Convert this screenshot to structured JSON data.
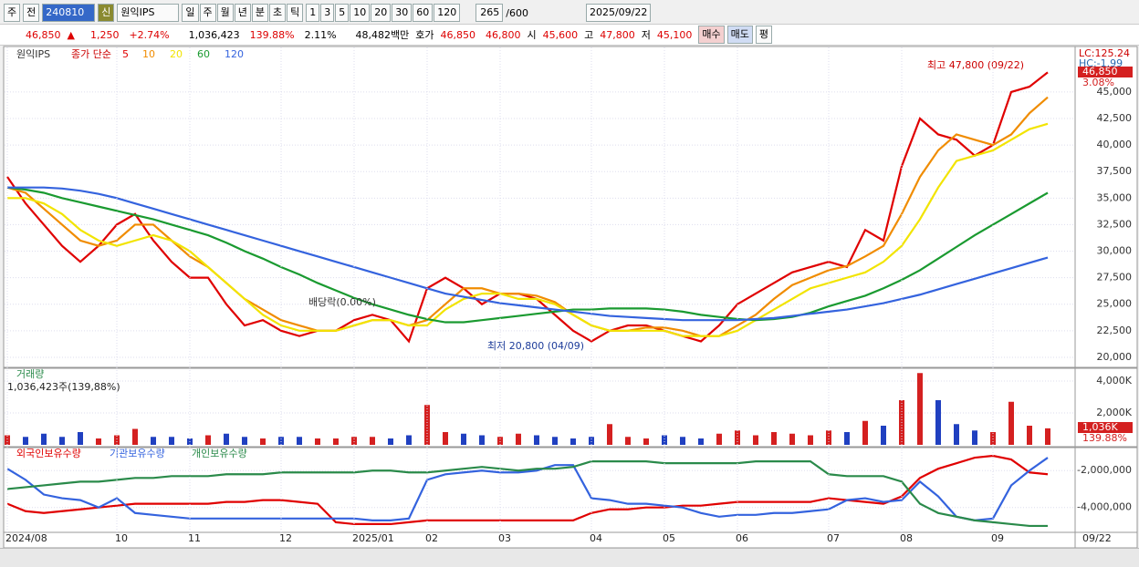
{
  "toolbar": {
    "period": "주",
    "prev": "전",
    "code": "240810",
    "badge": "신",
    "name": "원익IPS",
    "units": [
      "일",
      "주",
      "월",
      "년",
      "분",
      "초",
      "틱"
    ],
    "nums": [
      "1",
      "3",
      "5",
      "10",
      "20",
      "30",
      "60",
      "120"
    ],
    "count": "265",
    "total": "/600",
    "date": "2025/09/22"
  },
  "quote": {
    "price": "46,850",
    "arrow": "▲",
    "change": "1,250",
    "rate": "+2.74%",
    "volume": "1,036,423",
    "vratio": "139.88%",
    "turn": "2.11%",
    "amount": "48,482백만",
    "ask_label": "호가",
    "ask": "46,850",
    "bid": "46,800",
    "open_label": "시",
    "open": "45,600",
    "high_label": "고",
    "high": "47,800",
    "low_label": "저",
    "low": "45,100",
    "buy": "매수",
    "sell": "매도",
    "eval": "평"
  },
  "chart_data": [
    {
      "type": "line",
      "title": "원익IPS",
      "legend_prefix": "종가 단순",
      "series": [
        {
          "name": "5",
          "color": "#e00000",
          "values": [
            37000,
            34500,
            32500,
            30500,
            29000,
            30500,
            32500,
            33500,
            31000,
            29000,
            27500,
            27500,
            25000,
            23000,
            23500,
            22500,
            22000,
            22500,
            22500,
            23500,
            24000,
            23500,
            21500,
            26500,
            27500,
            26500,
            25000,
            26000,
            26000,
            25500,
            24000,
            22500,
            21500,
            22500,
            23000,
            23000,
            22500,
            22000,
            21500,
            23000,
            25000,
            26000,
            27000,
            28000,
            28500,
            29000,
            28500,
            32000,
            31000,
            38000,
            42500,
            41000,
            40500,
            39000,
            40000,
            45000,
            45500,
            46850
          ]
        },
        {
          "name": "10",
          "color": "#f08c00",
          "values": [
            36000,
            35500,
            34000,
            32500,
            31000,
            30500,
            31000,
            32500,
            32500,
            31000,
            29500,
            28500,
            27000,
            25500,
            24500,
            23500,
            23000,
            22500,
            22500,
            23000,
            23500,
            23500,
            23000,
            23500,
            25000,
            26500,
            26500,
            26000,
            26000,
            25800,
            25200,
            24000,
            23000,
            22500,
            22500,
            22800,
            22800,
            22500,
            22000,
            22000,
            23000,
            24000,
            25500,
            26800,
            27500,
            28200,
            28600,
            29500,
            30500,
            33500,
            37000,
            39500,
            41000,
            40500,
            40000,
            41000,
            43000,
            44500
          ]
        },
        {
          "name": "20",
          "color": "#f2e400",
          "values": [
            35000,
            35000,
            34500,
            33500,
            32000,
            31000,
            30500,
            31000,
            31500,
            31000,
            30000,
            28500,
            27000,
            25500,
            24000,
            23000,
            22500,
            22500,
            22500,
            23000,
            23500,
            23500,
            23000,
            23000,
            24500,
            25500,
            26000,
            26000,
            25500,
            25500,
            25000,
            24000,
            23000,
            22500,
            22500,
            22500,
            22500,
            22000,
            22000,
            22000,
            22500,
            23500,
            24500,
            25500,
            26500,
            27000,
            27500,
            28000,
            29000,
            30500,
            33000,
            36000,
            38500,
            39000,
            39500,
            40500,
            41500,
            42000
          ]
        },
        {
          "name": "60",
          "color": "#1a9a30",
          "values": [
            36000,
            35800,
            35500,
            35000,
            34600,
            34200,
            33800,
            33400,
            33000,
            32500,
            32000,
            31500,
            30800,
            30000,
            29300,
            28500,
            27800,
            27000,
            26300,
            25600,
            25000,
            24500,
            24000,
            23600,
            23300,
            23300,
            23500,
            23700,
            23900,
            24100,
            24300,
            24500,
            24500,
            24600,
            24600,
            24600,
            24500,
            24300,
            24000,
            23800,
            23600,
            23500,
            23600,
            23800,
            24200,
            24800,
            25300,
            25800,
            26500,
            27300,
            28200,
            29300,
            30400,
            31500,
            32500,
            33500,
            34500,
            35500
          ]
        },
        {
          "name": "120",
          "color": "#3463de",
          "values": [
            36000,
            36000,
            36000,
            35900,
            35700,
            35400,
            35000,
            34500,
            34000,
            33500,
            33000,
            32500,
            32000,
            31500,
            31000,
            30500,
            30000,
            29500,
            29000,
            28500,
            28000,
            27500,
            27000,
            26500,
            26000,
            25700,
            25400,
            25100,
            24900,
            24700,
            24500,
            24300,
            24100,
            23900,
            23800,
            23700,
            23600,
            23500,
            23500,
            23500,
            23500,
            23600,
            23700,
            23900,
            24100,
            24300,
            24500,
            24800,
            25100,
            25500,
            25900,
            26400,
            26900,
            27400,
            27900,
            28400,
            28900,
            29400
          ]
        }
      ],
      "ylim": [
        19050,
        49200
      ],
      "yticks": [
        {
          "value": 20000,
          "label": "20,000"
        },
        {
          "value": 22500,
          "label": "22,500"
        },
        {
          "value": 25000,
          "label": "25,000"
        },
        {
          "value": 27500,
          "label": "27,500"
        },
        {
          "value": 30000,
          "label": "30,000"
        },
        {
          "value": 32500,
          "label": "32,500"
        },
        {
          "value": 35000,
          "label": "35,000"
        },
        {
          "value": 37500,
          "label": "37,500"
        },
        {
          "value": 40000,
          "label": "40,000"
        },
        {
          "value": 42500,
          "label": "42,500"
        },
        {
          "value": 45000,
          "label": "45,000"
        }
      ],
      "annotations": {
        "high": "최고 47,800 (09/22)",
        "low": "최저 20,800 (04/09)",
        "dividend": "배당락(0.00%)",
        "lc": "LC:125.24",
        "hc": "HC:-1.99",
        "last": "46,850",
        "last_rate": "3.08%"
      },
      "grid": true
    },
    {
      "type": "bar",
      "title": "거래량",
      "subtitle": "1,036,423주(139,88%)",
      "color": "#d42020",
      "down_color": "#2040c0",
      "values": [
        600,
        500,
        700,
        500,
        800,
        400,
        600,
        1000,
        500,
        500,
        400,
        600,
        700,
        500,
        400,
        500,
        500,
        400,
        400,
        500,
        500,
        400,
        600,
        2500,
        800,
        700,
        600,
        500,
        700,
        600,
        500,
        400,
        500,
        1300,
        500,
        400,
        600,
        500,
        400,
        700,
        900,
        600,
        800,
        700,
        600,
        900,
        800,
        1500,
        1200,
        2800,
        4500,
        2800,
        1300,
        900,
        800,
        2700,
        1200,
        1036
      ],
      "ylim": [
        0,
        4800
      ],
      "yticks": [
        {
          "value": 2000,
          "label": "2,000K"
        },
        {
          "value": 4000,
          "label": "4,000K"
        }
      ],
      "annotations": {
        "last": "1,036K",
        "last_rate": "139.88%"
      }
    },
    {
      "type": "line",
      "categories": [
        "2024/08",
        null,
        null,
        null,
        null,
        null,
        "10",
        null,
        null,
        null,
        "11",
        null,
        null,
        null,
        null,
        "12",
        null,
        null,
        null,
        "2025/01",
        null,
        null,
        null,
        "02",
        null,
        null,
        null,
        "03",
        null,
        null,
        null,
        null,
        "04",
        null,
        null,
        null,
        "05",
        null,
        null,
        null,
        "06",
        null,
        null,
        null,
        null,
        "07",
        null,
        null,
        null,
        "08",
        null,
        null,
        null,
        null,
        "09",
        null,
        null,
        null
      ],
      "series": [
        {
          "name": "외국인보유수량",
          "color": "#e00000",
          "values": [
            -3800000,
            -4200000,
            -4300000,
            -4200000,
            -4100000,
            -4000000,
            -3900000,
            -3800000,
            -3800000,
            -3800000,
            -3800000,
            -3800000,
            -3700000,
            -3700000,
            -3600000,
            -3600000,
            -3700000,
            -3800000,
            -4800000,
            -4900000,
            -4900000,
            -4900000,
            -4800000,
            -4700000,
            -4700000,
            -4700000,
            -4700000,
            -4700000,
            -4700000,
            -4700000,
            -4700000,
            -4700000,
            -4300000,
            -4100000,
            -4100000,
            -4000000,
            -4000000,
            -3900000,
            -3900000,
            -3800000,
            -3700000,
            -3700000,
            -3700000,
            -3700000,
            -3700000,
            -3500000,
            -3600000,
            -3700000,
            -3800000,
            -3400000,
            -2400000,
            -1900000,
            -1600000,
            -1300000,
            -1200000,
            -1400000,
            -2100000,
            -2200000
          ]
        },
        {
          "name": "기관보유수량",
          "color": "#3463de",
          "values": [
            -1900000,
            -2500000,
            -3300000,
            -3500000,
            -3600000,
            -4000000,
            -3500000,
            -4300000,
            -4400000,
            -4500000,
            -4600000,
            -4600000,
            -4600000,
            -4600000,
            -4600000,
            -4600000,
            -4600000,
            -4600000,
            -4600000,
            -4600000,
            -4700000,
            -4700000,
            -4600000,
            -2500000,
            -2200000,
            -2100000,
            -2000000,
            -2100000,
            -2100000,
            -2000000,
            -1700000,
            -1700000,
            -3500000,
            -3600000,
            -3800000,
            -3800000,
            -3900000,
            -4000000,
            -4300000,
            -4500000,
            -4400000,
            -4400000,
            -4300000,
            -4300000,
            -4200000,
            -4100000,
            -3600000,
            -3500000,
            -3700000,
            -3600000,
            -2600000,
            -3400000,
            -4500000,
            -4700000,
            -4600000,
            -2800000,
            -2000000,
            -1300000
          ]
        },
        {
          "name": "개인보유수량",
          "color": "#2a8a4a",
          "values": [
            -3000000,
            -2900000,
            -2800000,
            -2700000,
            -2600000,
            -2600000,
            -2500000,
            -2400000,
            -2400000,
            -2300000,
            -2300000,
            -2300000,
            -2200000,
            -2200000,
            -2200000,
            -2100000,
            -2100000,
            -2100000,
            -2100000,
            -2100000,
            -2000000,
            -2000000,
            -2100000,
            -2100000,
            -2000000,
            -1900000,
            -1800000,
            -1900000,
            -2000000,
            -1900000,
            -1900000,
            -1800000,
            -1500000,
            -1500000,
            -1500000,
            -1500000,
            -1600000,
            -1600000,
            -1600000,
            -1600000,
            -1600000,
            -1500000,
            -1500000,
            -1500000,
            -1500000,
            -2200000,
            -2300000,
            -2300000,
            -2300000,
            -2600000,
            -3800000,
            -4300000,
            -4500000,
            -4700000,
            -4800000,
            -4900000,
            -5000000,
            -5000000
          ]
        }
      ],
      "ylim": [
        -5300000,
        -1000000
      ],
      "yticks": [
        {
          "value": -4000000,
          "label": "-4,000,000"
        },
        {
          "value": -2000000,
          "label": "-2,000,000"
        }
      ],
      "annotations": {
        "date": "09/22"
      }
    }
  ]
}
